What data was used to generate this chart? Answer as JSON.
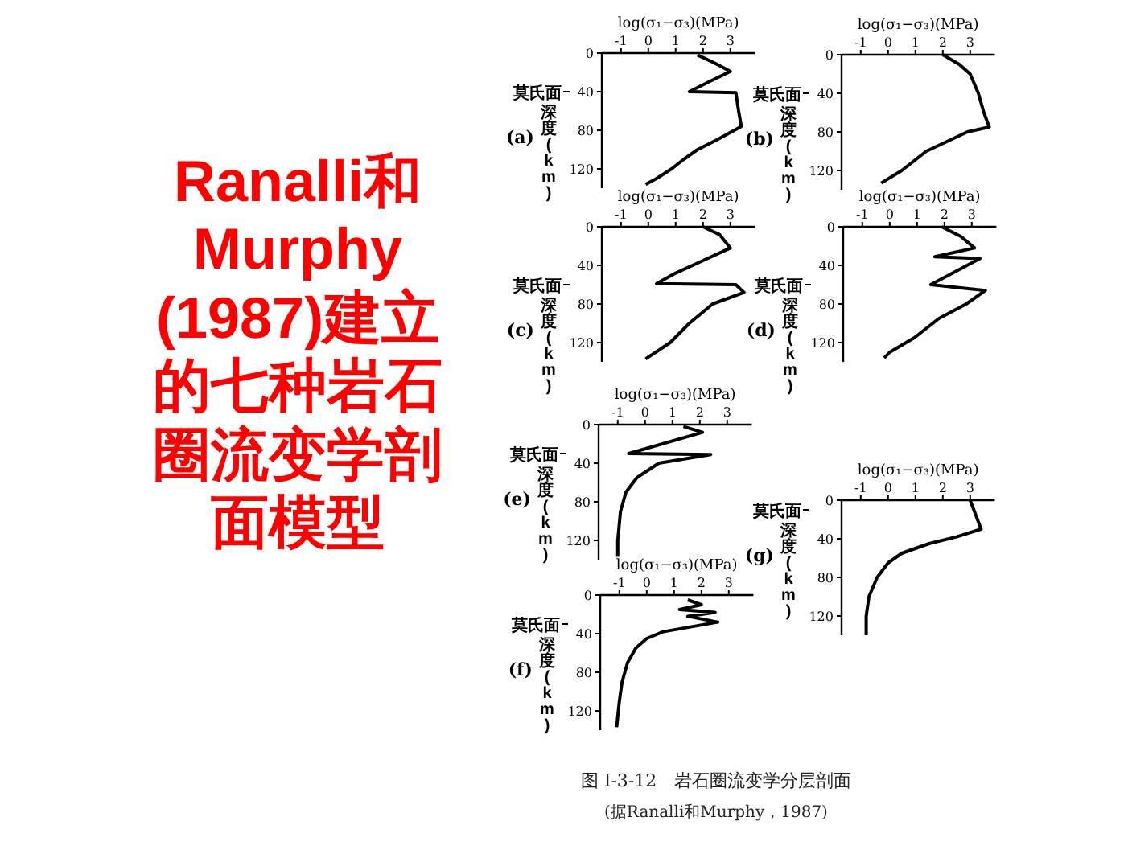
{
  "chart_data": [
    {
      "type": "other",
      "title": "Ranalli和Murphy(1987)建立的七种岩石圈流变学剖面模型"
    },
    {
      "type": "line",
      "xlabel": "log(σ₁−σ₃)(MPa)",
      "ylabel": "深度(km)",
      "annotations": [
        "(a)"
      ],
      "xlim": [
        -1.7,
        3.9
      ],
      "ylim": [
        140,
        0
      ],
      "xticks": [
        -1,
        0,
        1,
        2,
        3
      ],
      "yticks": [
        0,
        40,
        80,
        120
      ],
      "ref_lines": [
        {
          "axis": "y",
          "value": 40,
          "label": "莫氏面"
        }
      ],
      "series": [
        {
          "color": "#000000",
          "x": [
            1.8,
            2.4,
            3.0,
            2.2,
            1.5,
            3.2,
            3.3,
            3.4,
            2.5,
            1.8,
            1.3,
            0.85,
            0.3,
            -0.1
          ],
          "values": [
            2,
            10,
            19,
            30,
            40,
            41,
            60,
            76,
            90,
            100,
            110,
            120,
            130,
            136
          ]
        }
      ]
    },
    {
      "type": "line",
      "xlabel": "log(σ₁−σ₃)(MPa)",
      "ylabel": "深度(km)",
      "annotations": [
        "(b)"
      ],
      "xlim": [
        -1.7,
        3.9
      ],
      "ylim": [
        140,
        0
      ],
      "xticks": [
        -1,
        0,
        1,
        2,
        3
      ],
      "yticks": [
        0,
        40,
        80,
        120
      ],
      "ref_lines": [
        {
          "axis": "y",
          "value": 40,
          "label": "莫氏面"
        }
      ],
      "series": [
        {
          "color": "#000000",
          "x": [
            2.0,
            2.6,
            3.0,
            3.3,
            3.5,
            3.7,
            2.9,
            1.4,
            0.5,
            -0.25
          ],
          "values": [
            0,
            10,
            20,
            40,
            60,
            75,
            80,
            100,
            120,
            133
          ]
        }
      ]
    },
    {
      "type": "line",
      "xlabel": "log(σ₁−σ₃)(MPa)",
      "ylabel": "深度(km)",
      "annotations": [
        "(c)"
      ],
      "xlim": [
        -1.7,
        3.9
      ],
      "ylim": [
        140,
        0
      ],
      "xticks": [
        -1,
        0,
        1,
        2,
        3
      ],
      "yticks": [
        0,
        40,
        80,
        120
      ],
      "ref_lines": [
        {
          "axis": "y",
          "value": 60,
          "label": "莫氏面"
        }
      ],
      "series": [
        {
          "color": "#000000",
          "x": [
            2.0,
            2.6,
            3.0,
            2.0,
            1.0,
            0.3,
            3.2,
            3.5,
            2.35,
            1.5,
            0.8,
            -0.1
          ],
          "values": [
            0,
            8,
            22,
            35,
            48,
            59,
            60,
            68,
            80,
            100,
            120,
            137
          ]
        }
      ]
    },
    {
      "type": "line",
      "xlabel": "log(σ₁−σ₃)(MPa)",
      "ylabel": "深度(km)",
      "annotations": [
        "(d)"
      ],
      "xlim": [
        -1.7,
        3.9
      ],
      "ylim": [
        140,
        0
      ],
      "xticks": [
        -1,
        0,
        1,
        2,
        3
      ],
      "yticks": [
        0,
        40,
        80,
        120
      ],
      "ref_lines": [
        {
          "axis": "y",
          "value": 60,
          "label": "莫氏面"
        }
      ],
      "series": [
        {
          "color": "#000000",
          "x": [
            1.9,
            2.6,
            3.1,
            1.65,
            3.3,
            1.5,
            3.5,
            2.8,
            1.8,
            0.9,
            0.0,
            -0.2
          ],
          "values": [
            0,
            10,
            22,
            31,
            33,
            60,
            66,
            80,
            95,
            115,
            130,
            136
          ]
        }
      ]
    },
    {
      "type": "line",
      "xlabel": "log(σ₁−σ₃)(MPa)",
      "ylabel": "深度(km)",
      "annotations": [
        "(e)"
      ],
      "xlim": [
        -1.7,
        3.9
      ],
      "ylim": [
        140,
        0
      ],
      "xticks": [
        -1,
        0,
        1,
        2,
        3
      ],
      "yticks": [
        0,
        40,
        80,
        120
      ],
      "ref_lines": [
        {
          "axis": "y",
          "value": 30,
          "label": "莫氏面"
        }
      ],
      "series": [
        {
          "color": "#000000",
          "x": [
            1.4,
            2.1,
            -0.6,
            2.4,
            0.5,
            -0.3,
            -0.7,
            -0.9,
            -1.0,
            -1.0
          ],
          "values": [
            2,
            8,
            30,
            31,
            40,
            55,
            70,
            90,
            120,
            137
          ]
        }
      ]
    },
    {
      "type": "line",
      "xlabel": "log(σ₁−σ₃)(MPa)",
      "ylabel": "深度(km)",
      "annotations": [
        "(f)"
      ],
      "xlim": [
        -1.7,
        3.9
      ],
      "ylim": [
        140,
        0
      ],
      "xticks": [
        -1,
        0,
        1,
        2,
        3
      ],
      "yticks": [
        0,
        40,
        80,
        120
      ],
      "ref_lines": [
        {
          "axis": "y",
          "value": 30,
          "label": "莫氏面"
        }
      ],
      "series": [
        {
          "color": "#000000",
          "x": [
            1.5,
            2.0,
            1.2,
            2.5,
            1.5,
            2.6,
            0.6,
            0.0,
            -0.4,
            -0.7,
            -0.9,
            -1.0,
            -1.1
          ],
          "values": [
            5,
            10,
            15,
            18,
            22,
            28,
            38,
            45,
            55,
            70,
            90,
            110,
            137
          ]
        }
      ]
    },
    {
      "type": "line",
      "xlabel": "log(σ₁−σ₃)(MPa)",
      "ylabel": "深度(km)",
      "annotations": [
        "(g)"
      ],
      "xlim": [
        -1.7,
        3.9
      ],
      "ylim": [
        140,
        0
      ],
      "xticks": [
        -1,
        0,
        1,
        2,
        3
      ],
      "yticks": [
        0,
        40,
        80,
        120
      ],
      "ref_lines": [
        {
          "axis": "y",
          "value": 10,
          "label": "莫氏面"
        }
      ],
      "series": [
        {
          "color": "#000000",
          "x": [
            3.0,
            3.2,
            3.4,
            2.5,
            1.5,
            0.5,
            0.0,
            -0.4,
            -0.7,
            -0.8,
            -0.8
          ],
          "values": [
            0,
            15,
            30,
            38,
            45,
            55,
            65,
            80,
            100,
            120,
            140
          ]
        }
      ]
    },
    {
      "type": "other",
      "title": "图 I-3-12　岩石圈流变学分层剖面",
      "subtitle": "(据Ranalli和Murphy，1987)"
    }
  ]
}
